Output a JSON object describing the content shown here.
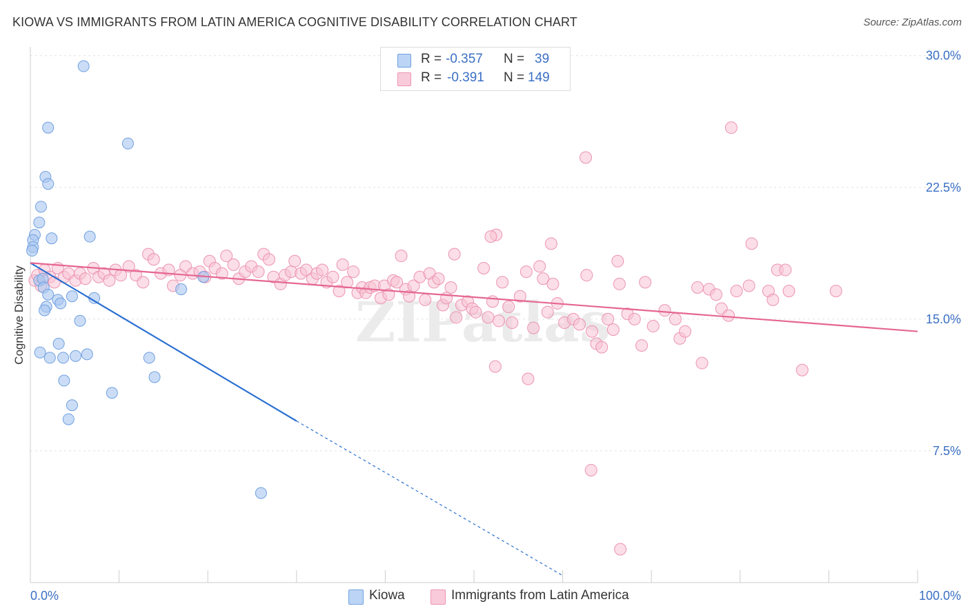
{
  "chart_data": {
    "type": "scatter",
    "title": "KIOWA VS IMMIGRANTS FROM LATIN AMERICA COGNITIVE DISABILITY CORRELATION CHART",
    "source": "Source: ZipAtlas.com",
    "xlabel": "",
    "ylabel": "Cognitive Disability",
    "xlim": [
      0,
      100
    ],
    "ylim": [
      0,
      30.5
    ],
    "x_tick_labels": [
      "0.0%",
      "100.0%"
    ],
    "y_ticks": [
      7.5,
      15.0,
      22.5,
      30.0
    ],
    "y_tick_labels": [
      "7.5%",
      "15.0%",
      "22.5%",
      "30.0%"
    ],
    "watermark": "ZIPatlas",
    "legend": [
      {
        "r_label": "R =",
        "r_value": "-0.357",
        "n_label": "N =",
        "n_value": "39"
      },
      {
        "r_label": "R =",
        "r_value": "-0.391",
        "n_label": "N =",
        "n_value": "149"
      }
    ],
    "series": [
      {
        "name": "Kiowa",
        "color": "#6f9fe0",
        "fill": "#a9c6f0",
        "line_color": "#2a6fd1",
        "trend": {
          "x0": 0,
          "y0": 18.2,
          "x1": 30,
          "y1": 9.2,
          "dash_x1": 60,
          "dash_y1": 0.4
        },
        "points": [
          [
            6,
            29.4
          ],
          [
            2,
            25.9
          ],
          [
            11,
            25
          ],
          [
            1.7,
            23.1
          ],
          [
            2,
            22.7
          ],
          [
            1.2,
            21.4
          ],
          [
            1,
            20.5
          ],
          [
            0.5,
            19.8
          ],
          [
            0.3,
            19.5
          ],
          [
            0.3,
            19.1
          ],
          [
            0.2,
            18.9
          ],
          [
            2.4,
            19.6
          ],
          [
            6.7,
            19.7
          ],
          [
            1,
            17.2
          ],
          [
            1.4,
            17.3
          ],
          [
            19.5,
            17.4
          ],
          [
            1.5,
            16.8
          ],
          [
            2,
            16.4
          ],
          [
            4.7,
            16.3
          ],
          [
            7.2,
            16.2
          ],
          [
            17,
            16.7
          ],
          [
            3.1,
            16.1
          ],
          [
            3.4,
            15.9
          ],
          [
            1.8,
            15.7
          ],
          [
            1.6,
            15.5
          ],
          [
            5.6,
            14.9
          ],
          [
            3.2,
            13.6
          ],
          [
            1.1,
            13.1
          ],
          [
            6.4,
            13
          ],
          [
            2.2,
            12.8
          ],
          [
            3.7,
            12.8
          ],
          [
            5.1,
            12.9
          ],
          [
            13.4,
            12.8
          ],
          [
            14,
            11.7
          ],
          [
            3.8,
            11.5
          ],
          [
            9.2,
            10.8
          ],
          [
            4.7,
            10.1
          ],
          [
            4.3,
            9.3
          ],
          [
            26,
            5.1
          ]
        ]
      },
      {
        "name": "Immigrants from Latin America",
        "color": "#ec93b1",
        "fill": "#f7c3d4",
        "line_color": "#e56690",
        "trend": {
          "x0": 0,
          "y0": 18.2,
          "x1": 100,
          "y1": 14.3
        },
        "points": [
          [
            0.5,
            17.2
          ],
          [
            0.8,
            17.5
          ],
          [
            1.2,
            16.9
          ],
          [
            1.6,
            17.8
          ],
          [
            2.2,
            17.4
          ],
          [
            2.7,
            17.1
          ],
          [
            3.1,
            17.9
          ],
          [
            3.8,
            17.4
          ],
          [
            4.3,
            17.6
          ],
          [
            5.1,
            17.2
          ],
          [
            5.6,
            17.6
          ],
          [
            6.2,
            17.3
          ],
          [
            7.1,
            17.9
          ],
          [
            7.7,
            17.4
          ],
          [
            8.3,
            17.6
          ],
          [
            8.9,
            17.2
          ],
          [
            9.6,
            17.8
          ],
          [
            10.2,
            17.5
          ],
          [
            11.1,
            18
          ],
          [
            11.9,
            17.5
          ],
          [
            12.7,
            17.1
          ],
          [
            13.3,
            18.7
          ],
          [
            13.9,
            18.4
          ],
          [
            14.7,
            17.6
          ],
          [
            15.6,
            17.8
          ],
          [
            16.1,
            16.9
          ],
          [
            16.9,
            17.5
          ],
          [
            17.5,
            18
          ],
          [
            18.3,
            17.6
          ],
          [
            19.1,
            17.7
          ],
          [
            19.7,
            17.4
          ],
          [
            20.2,
            18.3
          ],
          [
            20.8,
            17.9
          ],
          [
            21.6,
            17.6
          ],
          [
            22.1,
            18.6
          ],
          [
            22.9,
            18.1
          ],
          [
            23.5,
            17.3
          ],
          [
            24.2,
            17.7
          ],
          [
            24.9,
            18
          ],
          [
            25.7,
            17.7
          ],
          [
            26.3,
            18.7
          ],
          [
            26.9,
            18.4
          ],
          [
            27.4,
            17.4
          ],
          [
            28.2,
            17
          ],
          [
            28.7,
            17.5
          ],
          [
            29.4,
            17.7
          ],
          [
            29.8,
            18.3
          ],
          [
            30.5,
            17.6
          ],
          [
            31.1,
            17.8
          ],
          [
            31.8,
            17.3
          ],
          [
            32.3,
            17.6
          ],
          [
            32.9,
            17.8
          ],
          [
            33.4,
            17.1
          ],
          [
            34.1,
            17.4
          ],
          [
            34.8,
            16.6
          ],
          [
            35.2,
            18.1
          ],
          [
            35.7,
            17.1
          ],
          [
            36.4,
            17.7
          ],
          [
            36.9,
            16.5
          ],
          [
            37.4,
            16.8
          ],
          [
            37.8,
            16.5
          ],
          [
            38.3,
            16.8
          ],
          [
            38.8,
            16.9
          ],
          [
            39.5,
            16.2
          ],
          [
            39.9,
            16.9
          ],
          [
            40.4,
            16.4
          ],
          [
            40.9,
            17.2
          ],
          [
            41.3,
            17.1
          ],
          [
            41.8,
            18.6
          ],
          [
            42.3,
            16.7
          ],
          [
            42.7,
            16.3
          ],
          [
            43.2,
            16.9
          ],
          [
            43.9,
            17.4
          ],
          [
            44.5,
            16.1
          ],
          [
            45,
            17.6
          ],
          [
            45.5,
            17.1
          ],
          [
            46,
            17.3
          ],
          [
            46.5,
            15.8
          ],
          [
            46.9,
            16.2
          ],
          [
            47.4,
            16.8
          ],
          [
            48,
            15.1
          ],
          [
            48.6,
            15.8
          ],
          [
            49.3,
            16
          ],
          [
            49.8,
            15.6
          ],
          [
            50.2,
            15.4
          ],
          [
            51.1,
            17.9
          ],
          [
            51.6,
            15.1
          ],
          [
            52.1,
            16
          ],
          [
            52.8,
            14.9
          ],
          [
            53.2,
            17.1
          ],
          [
            53.9,
            15.7
          ],
          [
            54.3,
            14.8
          ],
          [
            55.2,
            16.3
          ],
          [
            55.9,
            17.7
          ],
          [
            56.7,
            14.5
          ],
          [
            57.4,
            18
          ],
          [
            57.8,
            17.3
          ],
          [
            58.3,
            15.4
          ],
          [
            58.9,
            17
          ],
          [
            59.4,
            15.9
          ],
          [
            60.2,
            14.8
          ],
          [
            61.2,
            15
          ],
          [
            61.9,
            14.7
          ],
          [
            62.7,
            17.5
          ],
          [
            63.3,
            14.3
          ],
          [
            63.8,
            13.6
          ],
          [
            64.4,
            13.4
          ],
          [
            65.1,
            15
          ],
          [
            65.7,
            14.4
          ],
          [
            66.4,
            17
          ],
          [
            67.3,
            15.3
          ],
          [
            68.1,
            15
          ],
          [
            68.9,
            13.5
          ],
          [
            69.3,
            17.1
          ],
          [
            70.2,
            14.6
          ],
          [
            71.5,
            15.5
          ],
          [
            72.7,
            15
          ],
          [
            73.2,
            13.9
          ],
          [
            73.8,
            14.3
          ],
          [
            75.2,
            16.8
          ],
          [
            75.7,
            12.5
          ],
          [
            76.5,
            16.7
          ],
          [
            77.3,
            16.4
          ],
          [
            77.9,
            15.6
          ],
          [
            78.7,
            15.2
          ],
          [
            79.6,
            16.6
          ],
          [
            81,
            16.9
          ],
          [
            81.3,
            19.3
          ],
          [
            83.2,
            16.6
          ],
          [
            83.7,
            16.1
          ],
          [
            84.2,
            17.8
          ],
          [
            85.1,
            17.8
          ],
          [
            85.5,
            16.6
          ],
          [
            87,
            12.1
          ],
          [
            90.8,
            16.6
          ],
          [
            79,
            25.9
          ],
          [
            62.6,
            24.2
          ],
          [
            52.5,
            19.8
          ],
          [
            58.7,
            19.3
          ],
          [
            51.9,
            19.7
          ],
          [
            66.2,
            18.3
          ],
          [
            47.8,
            18.7
          ],
          [
            52.4,
            12.3
          ],
          [
            56.1,
            11.6
          ],
          [
            63.2,
            6.4
          ],
          [
            66.5,
            1.9
          ]
        ]
      }
    ]
  }
}
